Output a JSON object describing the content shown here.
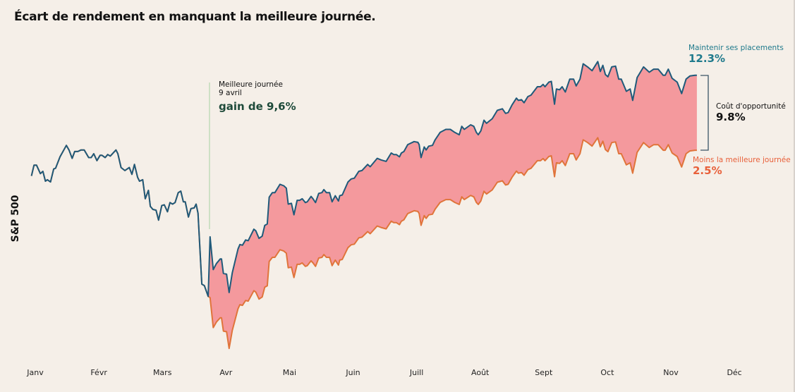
{
  "title": "Écart de rendement en manquant la meilleure journée.",
  "colors": {
    "background": "#f5efe8",
    "stay_invested": "#1f5a7a",
    "missing_best_day": "#e0743a",
    "gap_fill": "#f4999d",
    "best_day_marker": "#a8d0a0"
  },
  "annotations": {
    "best_day": {
      "label": "Meilleure journée",
      "date": "9 avril",
      "gain": "gain de 9,6%"
    },
    "stay_invested": {
      "label": "Maintenir ses placements",
      "value": "12.3%"
    },
    "opportunity_cost": {
      "label": "Coût d'opportunité",
      "value": "9.8%"
    },
    "missing_best_day": {
      "label": "Moins la meilleure journée",
      "value": "2.5%"
    }
  },
  "chart_data": {
    "type": "area",
    "title": "Écart de rendement en manquant la meilleure journée.",
    "ylabel": "S&P 500",
    "xlabel": "",
    "x_ticks": [
      "Janv",
      "Févr",
      "Mars",
      "Avr",
      "Mai",
      "Juin",
      "Juill",
      "Août",
      "Sept",
      "Oct",
      "Nov",
      "Déc"
    ],
    "x_unit": "months since January (tick index)",
    "y_unit": "% return (approx.)",
    "ylim": [
      -25,
      19.4
    ],
    "grid": false,
    "legend": "none",
    "best_day_gain_pct": 9.6,
    "best_day_split_x": 2.72,
    "series": [
      {
        "name": "Maintenir ses placements",
        "color": "#1f5a7a",
        "points": [
          [
            -0.06,
            -0.9
          ],
          [
            -0.02,
            0.5
          ],
          [
            0.02,
            0.5
          ],
          [
            0.08,
            -0.6
          ],
          [
            0.12,
            -0.3
          ],
          [
            0.16,
            -1.6
          ],
          [
            0.19,
            -1.4
          ],
          [
            0.24,
            -1.7
          ],
          [
            0.29,
            0.0
          ],
          [
            0.32,
            0.1
          ],
          [
            0.39,
            1.6
          ],
          [
            0.49,
            3.1
          ],
          [
            0.53,
            2.5
          ],
          [
            0.58,
            1.4
          ],
          [
            0.62,
            2.3
          ],
          [
            0.67,
            2.3
          ],
          [
            0.72,
            2.5
          ],
          [
            0.77,
            2.5
          ],
          [
            0.84,
            1.5
          ],
          [
            0.88,
            1.5
          ],
          [
            0.92,
            2.0
          ],
          [
            0.97,
            1.1
          ],
          [
            1.02,
            1.8
          ],
          [
            1.05,
            1.8
          ],
          [
            1.1,
            1.5
          ],
          [
            1.14,
            1.9
          ],
          [
            1.18,
            1.7
          ],
          [
            1.27,
            2.5
          ],
          [
            1.3,
            2.0
          ],
          [
            1.35,
            0.2
          ],
          [
            1.41,
            -0.2
          ],
          [
            1.48,
            0.2
          ],
          [
            1.52,
            -0.7
          ],
          [
            1.56,
            0.6
          ],
          [
            1.61,
            -1.1
          ],
          [
            1.64,
            -1.6
          ],
          [
            1.69,
            -1.4
          ],
          [
            1.73,
            -3.9
          ],
          [
            1.78,
            -2.8
          ],
          [
            1.81,
            -4.9
          ],
          [
            1.85,
            -5.3
          ],
          [
            1.9,
            -5.4
          ],
          [
            1.94,
            -6.7
          ],
          [
            1.99,
            -4.8
          ],
          [
            2.03,
            -4.7
          ],
          [
            2.08,
            -5.6
          ],
          [
            2.12,
            -4.4
          ],
          [
            2.16,
            -4.6
          ],
          [
            2.2,
            -4.4
          ],
          [
            2.25,
            -3.1
          ],
          [
            2.29,
            -2.9
          ],
          [
            2.33,
            -4.3
          ],
          [
            2.36,
            -4.3
          ],
          [
            2.41,
            -6.3
          ],
          [
            2.45,
            -5.2
          ],
          [
            2.5,
            -5.1
          ],
          [
            2.53,
            -4.6
          ],
          [
            2.56,
            -5.8
          ],
          [
            2.62,
            -15.1
          ],
          [
            2.66,
            -15.3
          ],
          [
            2.72,
            -16.7
          ],
          [
            2.75,
            -8.9
          ],
          [
            2.8,
            -13.2
          ],
          [
            2.85,
            -12.4
          ],
          [
            2.91,
            -11.8
          ],
          [
            2.93,
            -11.8
          ],
          [
            2.96,
            -13.7
          ],
          [
            3.01,
            -13.8
          ],
          [
            3.05,
            -16.2
          ],
          [
            3.1,
            -13.6
          ],
          [
            3.19,
            -10.5
          ],
          [
            3.22,
            -9.9
          ],
          [
            3.26,
            -10.0
          ],
          [
            3.31,
            -9.3
          ],
          [
            3.35,
            -9.4
          ],
          [
            3.44,
            -7.9
          ],
          [
            3.47,
            -8.1
          ],
          [
            3.52,
            -9.1
          ],
          [
            3.57,
            -8.8
          ],
          [
            3.61,
            -7.4
          ],
          [
            3.65,
            -7.2
          ],
          [
            3.68,
            -3.7
          ],
          [
            3.73,
            -3.1
          ],
          [
            3.77,
            -3.1
          ],
          [
            3.85,
            -2.0
          ],
          [
            3.91,
            -2.2
          ],
          [
            3.95,
            -2.5
          ],
          [
            3.98,
            -4.6
          ],
          [
            4.03,
            -4.5
          ],
          [
            4.07,
            -6.0
          ],
          [
            4.12,
            -4.1
          ],
          [
            4.16,
            -4.1
          ],
          [
            4.2,
            -3.9
          ],
          [
            4.25,
            -4.4
          ],
          [
            4.28,
            -4.3
          ],
          [
            4.34,
            -3.6
          ],
          [
            4.37,
            -3.9
          ],
          [
            4.41,
            -4.4
          ],
          [
            4.46,
            -3.2
          ],
          [
            4.51,
            -3.1
          ],
          [
            4.54,
            -2.7
          ],
          [
            4.58,
            -3.1
          ],
          [
            4.63,
            -3.1
          ],
          [
            4.67,
            -4.3
          ],
          [
            4.72,
            -3.5
          ],
          [
            4.77,
            -4.2
          ],
          [
            4.79,
            -3.5
          ],
          [
            4.83,
            -3.4
          ],
          [
            4.92,
            -1.7
          ],
          [
            4.97,
            -1.3
          ],
          [
            5.02,
            -1.2
          ],
          [
            5.09,
            -0.3
          ],
          [
            5.14,
            -0.2
          ],
          [
            5.23,
            0.6
          ],
          [
            5.27,
            0.3
          ],
          [
            5.38,
            1.4
          ],
          [
            5.44,
            1.2
          ],
          [
            5.52,
            1.0
          ],
          [
            5.6,
            2.1
          ],
          [
            5.64,
            1.9
          ],
          [
            5.68,
            1.9
          ],
          [
            5.73,
            1.6
          ],
          [
            5.76,
            2.1
          ],
          [
            5.8,
            2.3
          ],
          [
            5.86,
            3.2
          ],
          [
            5.96,
            3.6
          ],
          [
            6.02,
            3.5
          ],
          [
            6.04,
            3.2
          ],
          [
            6.07,
            1.5
          ],
          [
            6.12,
            2.9
          ],
          [
            6.15,
            2.5
          ],
          [
            6.19,
            3.0
          ],
          [
            6.25,
            3.1
          ],
          [
            6.29,
            3.8
          ],
          [
            6.37,
            4.8
          ],
          [
            6.46,
            5.2
          ],
          [
            6.53,
            5.2
          ],
          [
            6.6,
            4.8
          ],
          [
            6.67,
            4.5
          ],
          [
            6.71,
            5.6
          ],
          [
            6.75,
            5.2
          ],
          [
            6.85,
            5.8
          ],
          [
            6.9,
            5.6
          ],
          [
            6.94,
            4.8
          ],
          [
            6.97,
            4.5
          ],
          [
            7.01,
            5.0
          ],
          [
            7.06,
            6.4
          ],
          [
            7.1,
            6.0
          ],
          [
            7.19,
            6.6
          ],
          [
            7.27,
            7.7
          ],
          [
            7.35,
            7.9
          ],
          [
            7.4,
            7.3
          ],
          [
            7.44,
            7.4
          ],
          [
            7.5,
            8.4
          ],
          [
            7.57,
            9.3
          ],
          [
            7.6,
            9.0
          ],
          [
            7.65,
            9.1
          ],
          [
            7.69,
            8.7
          ],
          [
            7.75,
            9.5
          ],
          [
            7.8,
            9.7
          ],
          [
            7.9,
            10.8
          ],
          [
            7.95,
            10.8
          ],
          [
            7.99,
            11.1
          ],
          [
            8.02,
            10.8
          ],
          [
            8.08,
            11.4
          ],
          [
            8.12,
            11.5
          ],
          [
            8.17,
            8.5
          ],
          [
            8.2,
            10.5
          ],
          [
            8.25,
            10.4
          ],
          [
            8.29,
            10.8
          ],
          [
            8.34,
            10.1
          ],
          [
            8.41,
            11.8
          ],
          [
            8.47,
            11.8
          ],
          [
            8.51,
            10.9
          ],
          [
            8.57,
            11.8
          ],
          [
            8.62,
            13.8
          ],
          [
            8.69,
            13.4
          ],
          [
            8.76,
            12.9
          ],
          [
            8.85,
            14.1
          ],
          [
            8.89,
            12.8
          ],
          [
            8.93,
            13.6
          ],
          [
            8.97,
            12.4
          ],
          [
            9.01,
            12.1
          ],
          [
            9.07,
            13.4
          ],
          [
            9.13,
            13.5
          ],
          [
            9.18,
            11.8
          ],
          [
            9.22,
            11.8
          ],
          [
            9.3,
            10.2
          ],
          [
            9.36,
            10.5
          ],
          [
            9.4,
            9.0
          ],
          [
            9.47,
            12.0
          ],
          [
            9.57,
            13.4
          ],
          [
            9.66,
            12.7
          ],
          [
            9.73,
            13.1
          ],
          [
            9.8,
            13.1
          ],
          [
            9.88,
            12.3
          ],
          [
            9.91,
            12.3
          ],
          [
            9.96,
            13.1
          ],
          [
            10.02,
            11.9
          ],
          [
            10.1,
            11.4
          ],
          [
            10.17,
            9.9
          ],
          [
            10.24,
            11.8
          ],
          [
            10.3,
            12.2
          ],
          [
            10.38,
            12.3
          ],
          [
            10.41,
            12.3
          ]
        ]
      },
      {
        "name": "Moins la meilleure journée",
        "color": "#e0743a",
        "derived_from": "Maintenir ses placements without the best day (÷ 1.096 after the split)"
      }
    ]
  }
}
